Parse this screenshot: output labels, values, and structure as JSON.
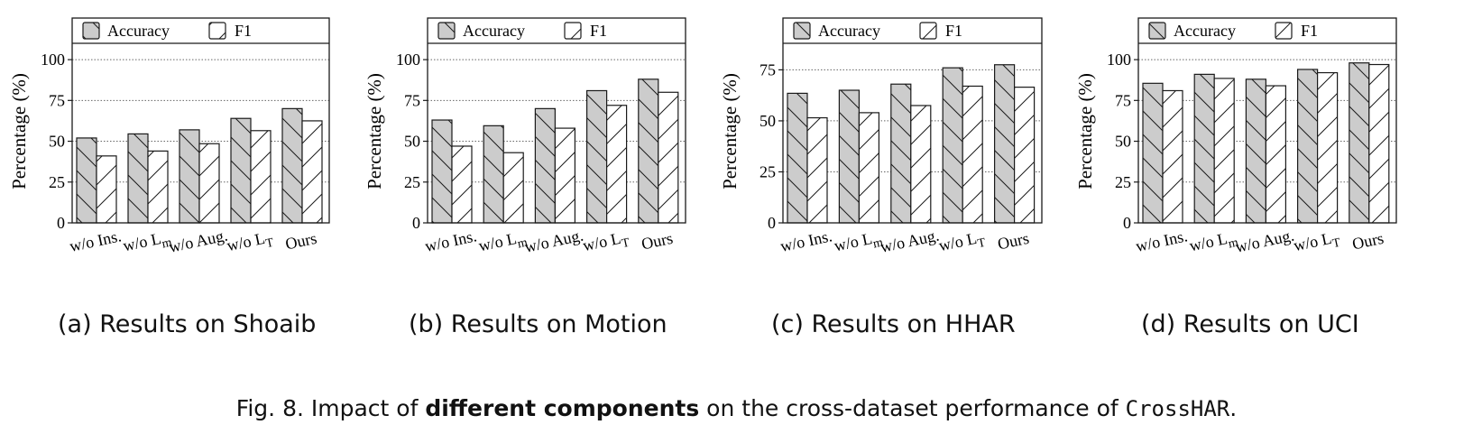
{
  "legend": {
    "accuracy_label": "Accuracy",
    "f1_label": "F1"
  },
  "colors": {
    "accuracy_fill": "#cccccc",
    "f1_fill": "#ffffff",
    "stroke": "#1a1a1a",
    "grid": "#666666"
  },
  "categories": [
    "w/o Ins.",
    "w/o L_m",
    "w/o Aug.",
    "w/o L_T",
    "Ours"
  ],
  "chart_data": [
    {
      "type": "bar",
      "ylabel": "Percentage (%)",
      "ylim": [
        0,
        110
      ],
      "yticks": [
        0,
        25,
        50,
        75,
        100
      ],
      "grid": "y-dotted",
      "legend": "top",
      "categories": [
        "w/o Ins.",
        "w/o Lm",
        "w/o Aug.",
        "w/o LT",
        "Ours"
      ],
      "series": [
        {
          "name": "Accuracy",
          "values": [
            52,
            54.5,
            57,
            64,
            70
          ]
        },
        {
          "name": "F1",
          "values": [
            41,
            44,
            48.5,
            56.5,
            62.5
          ]
        }
      ]
    },
    {
      "type": "bar",
      "ylabel": "Percentage (%)",
      "ylim": [
        0,
        110
      ],
      "yticks": [
        0,
        25,
        50,
        75,
        100
      ],
      "grid": "y-dotted",
      "legend": "top",
      "categories": [
        "w/o Ins.",
        "w/o Lm",
        "w/o Aug.",
        "w/o LT",
        "Ours"
      ],
      "series": [
        {
          "name": "Accuracy",
          "values": [
            63,
            59.5,
            70,
            81,
            88
          ]
        },
        {
          "name": "F1",
          "values": [
            47,
            43,
            58,
            72,
            80
          ]
        }
      ]
    },
    {
      "type": "bar",
      "ylabel": "Percentage (%)",
      "ylim": [
        0,
        88
      ],
      "yticks": [
        0,
        25,
        50,
        75
      ],
      "grid": "y-dotted",
      "legend": "top",
      "categories": [
        "w/o Ins.",
        "w/o Lm",
        "w/o Aug.",
        "w/o LT",
        "Ours"
      ],
      "series": [
        {
          "name": "Accuracy",
          "values": [
            63.5,
            65,
            68,
            76,
            77.5
          ]
        },
        {
          "name": "F1",
          "values": [
            51.5,
            54,
            57.5,
            67,
            66.5
          ]
        }
      ]
    },
    {
      "type": "bar",
      "ylabel": "Percentage (%)",
      "ylim": [
        0,
        110
      ],
      "yticks": [
        0,
        25,
        50,
        75,
        100
      ],
      "grid": "y-dotted",
      "legend": "top",
      "categories": [
        "w/o Ins.",
        "w/o Lm",
        "w/o Aug.",
        "w/o LT",
        "Ours"
      ],
      "series": [
        {
          "name": "Accuracy",
          "values": [
            85.5,
            91,
            88,
            94,
            98
          ]
        },
        {
          "name": "F1",
          "values": [
            81,
            88.5,
            84,
            92,
            97
          ]
        }
      ]
    }
  ],
  "subcaptions": [
    "(a) Results on Shoaib",
    "(b) Results on Motion",
    "(c) Results on HHAR",
    "(d) Results on UCI"
  ],
  "caption": {
    "prefix": "Fig. 8.  Impact of ",
    "bold": "different components",
    "middle": " on the cross-dataset performance of ",
    "mono": "CrossHAR",
    "suffix": "."
  }
}
